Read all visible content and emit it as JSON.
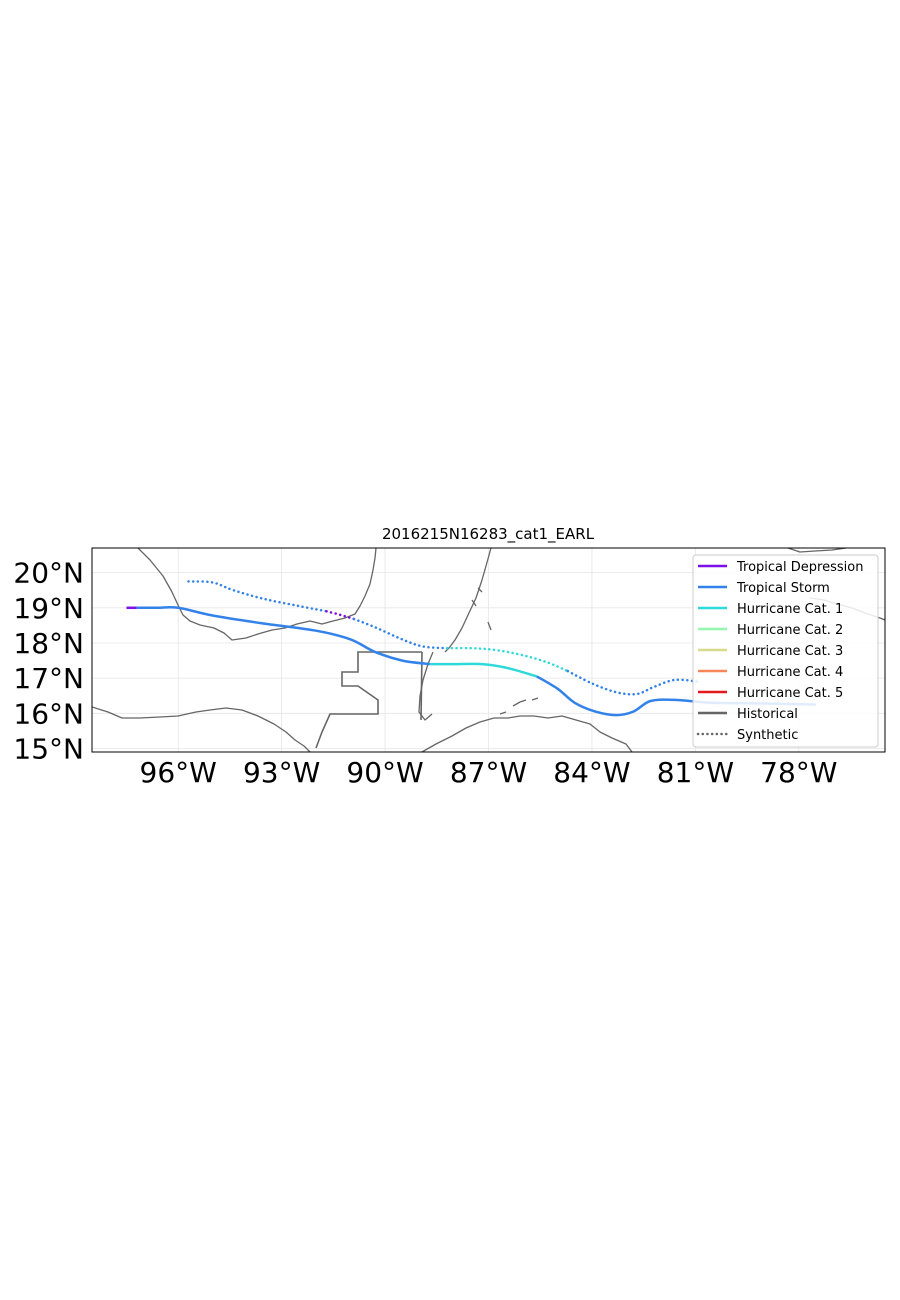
{
  "map": {
    "title": "2016215N16283_cat1_EARL",
    "lon_range": [
      -98.5,
      -75.5
    ],
    "lat_range": [
      14.9,
      20.7
    ],
    "lat_ticks": [
      {
        "value": 20,
        "label": "20°N"
      },
      {
        "value": 19,
        "label": "19°N"
      },
      {
        "value": 18,
        "label": "18°N"
      },
      {
        "value": 17,
        "label": "17°N"
      },
      {
        "value": 16,
        "label": "16°N"
      },
      {
        "value": 15,
        "label": "15°N"
      }
    ],
    "lon_ticks": [
      {
        "value": -96,
        "label": "96°W"
      },
      {
        "value": -93,
        "label": "93°W"
      },
      {
        "value": -90,
        "label": "90°W"
      },
      {
        "value": -87,
        "label": "87°W"
      },
      {
        "value": -84,
        "label": "84°W"
      },
      {
        "value": -81,
        "label": "81°W"
      },
      {
        "value": -78,
        "label": "78°W"
      }
    ],
    "grid": true,
    "legend": {
      "placement": "top-right",
      "entries": [
        {
          "label": "Tropical Depression",
          "color": "#7b10e8",
          "style": "solid"
        },
        {
          "label": "Tropical Storm",
          "color": "#3382ea",
          "style": "solid"
        },
        {
          "label": "Hurricane Cat. 1",
          "color": "#2ed9d9",
          "style": "solid"
        },
        {
          "label": "Hurricane Cat. 2",
          "color": "#96f7b0",
          "style": "solid"
        },
        {
          "label": "Hurricane Cat. 3",
          "color": "#d6dc8a",
          "style": "solid"
        },
        {
          "label": "Hurricane Cat. 4",
          "color": "#f7875a",
          "style": "solid"
        },
        {
          "label": "Hurricane Cat. 5",
          "color": "#e31a1c",
          "style": "solid"
        },
        {
          "label": "Historical",
          "color": "#666666",
          "style": "solid"
        },
        {
          "label": "Synthetic",
          "color": "#666666",
          "style": "dotted"
        }
      ]
    },
    "tracks": [
      {
        "kind": "historical",
        "category": "Tropical Depression",
        "color": "#7b10e8",
        "points": [
          [
            -97.5,
            19.0
          ],
          [
            -97.2,
            19.0
          ]
        ]
      },
      {
        "kind": "historical",
        "category": "Tropical Storm",
        "color": "#3382ea",
        "points": [
          [
            -97.2,
            19.0
          ],
          [
            -96.6,
            19.0
          ],
          [
            -96.0,
            19.0
          ],
          [
            -95.0,
            18.78
          ],
          [
            -93.5,
            18.55
          ],
          [
            -92.0,
            18.35
          ],
          [
            -91.0,
            18.1
          ],
          [
            -90.3,
            17.75
          ],
          [
            -89.5,
            17.5
          ],
          [
            -88.7,
            17.4
          ]
        ]
      },
      {
        "kind": "historical",
        "category": "Hurricane Cat. 1",
        "color": "#2ed9d9",
        "points": [
          [
            -88.7,
            17.4
          ],
          [
            -88.0,
            17.4
          ],
          [
            -87.2,
            17.4
          ],
          [
            -86.5,
            17.3
          ],
          [
            -85.6,
            17.05
          ]
        ]
      },
      {
        "kind": "historical",
        "category": "Tropical Storm",
        "color": "#3382ea",
        "points": [
          [
            -85.6,
            17.05
          ],
          [
            -85.0,
            16.7
          ],
          [
            -84.5,
            16.3
          ],
          [
            -83.9,
            16.05
          ],
          [
            -83.3,
            15.95
          ],
          [
            -82.8,
            16.05
          ],
          [
            -82.3,
            16.35
          ],
          [
            -81.6,
            16.38
          ],
          [
            -80.5,
            16.3
          ],
          [
            -79.0,
            16.28
          ],
          [
            -77.5,
            16.25
          ]
        ]
      },
      {
        "kind": "synthetic",
        "category": "Tropical Storm",
        "color": "#3382ea",
        "points": [
          [
            -95.7,
            19.75
          ],
          [
            -95.0,
            19.72
          ],
          [
            -94.4,
            19.5
          ],
          [
            -93.5,
            19.25
          ],
          [
            -92.5,
            19.05
          ],
          [
            -91.7,
            18.9
          ]
        ]
      },
      {
        "kind": "synthetic",
        "category": "Tropical Depression",
        "color": "#7b10e8",
        "points": [
          [
            -91.7,
            18.9
          ],
          [
            -91.3,
            18.8
          ],
          [
            -90.9,
            18.68
          ]
        ]
      },
      {
        "kind": "synthetic",
        "category": "Tropical Storm",
        "color": "#3382ea",
        "points": [
          [
            -90.9,
            18.68
          ],
          [
            -90.3,
            18.45
          ],
          [
            -89.5,
            18.1
          ],
          [
            -88.9,
            17.9
          ],
          [
            -88.2,
            17.85
          ]
        ]
      },
      {
        "kind": "synthetic",
        "category": "Hurricane Cat. 1",
        "color": "#2ed9d9",
        "points": [
          [
            -88.2,
            17.85
          ],
          [
            -87.5,
            17.85
          ],
          [
            -86.8,
            17.8
          ],
          [
            -86.0,
            17.65
          ],
          [
            -85.3,
            17.45
          ],
          [
            -84.7,
            17.2
          ]
        ]
      },
      {
        "kind": "synthetic",
        "category": "Tropical Storm",
        "color": "#3382ea",
        "points": [
          [
            -84.7,
            17.2
          ],
          [
            -84.0,
            16.85
          ],
          [
            -83.3,
            16.6
          ],
          [
            -82.7,
            16.55
          ],
          [
            -82.2,
            16.75
          ],
          [
            -81.6,
            16.95
          ],
          [
            -80.9,
            16.9
          ]
        ]
      }
    ]
  }
}
